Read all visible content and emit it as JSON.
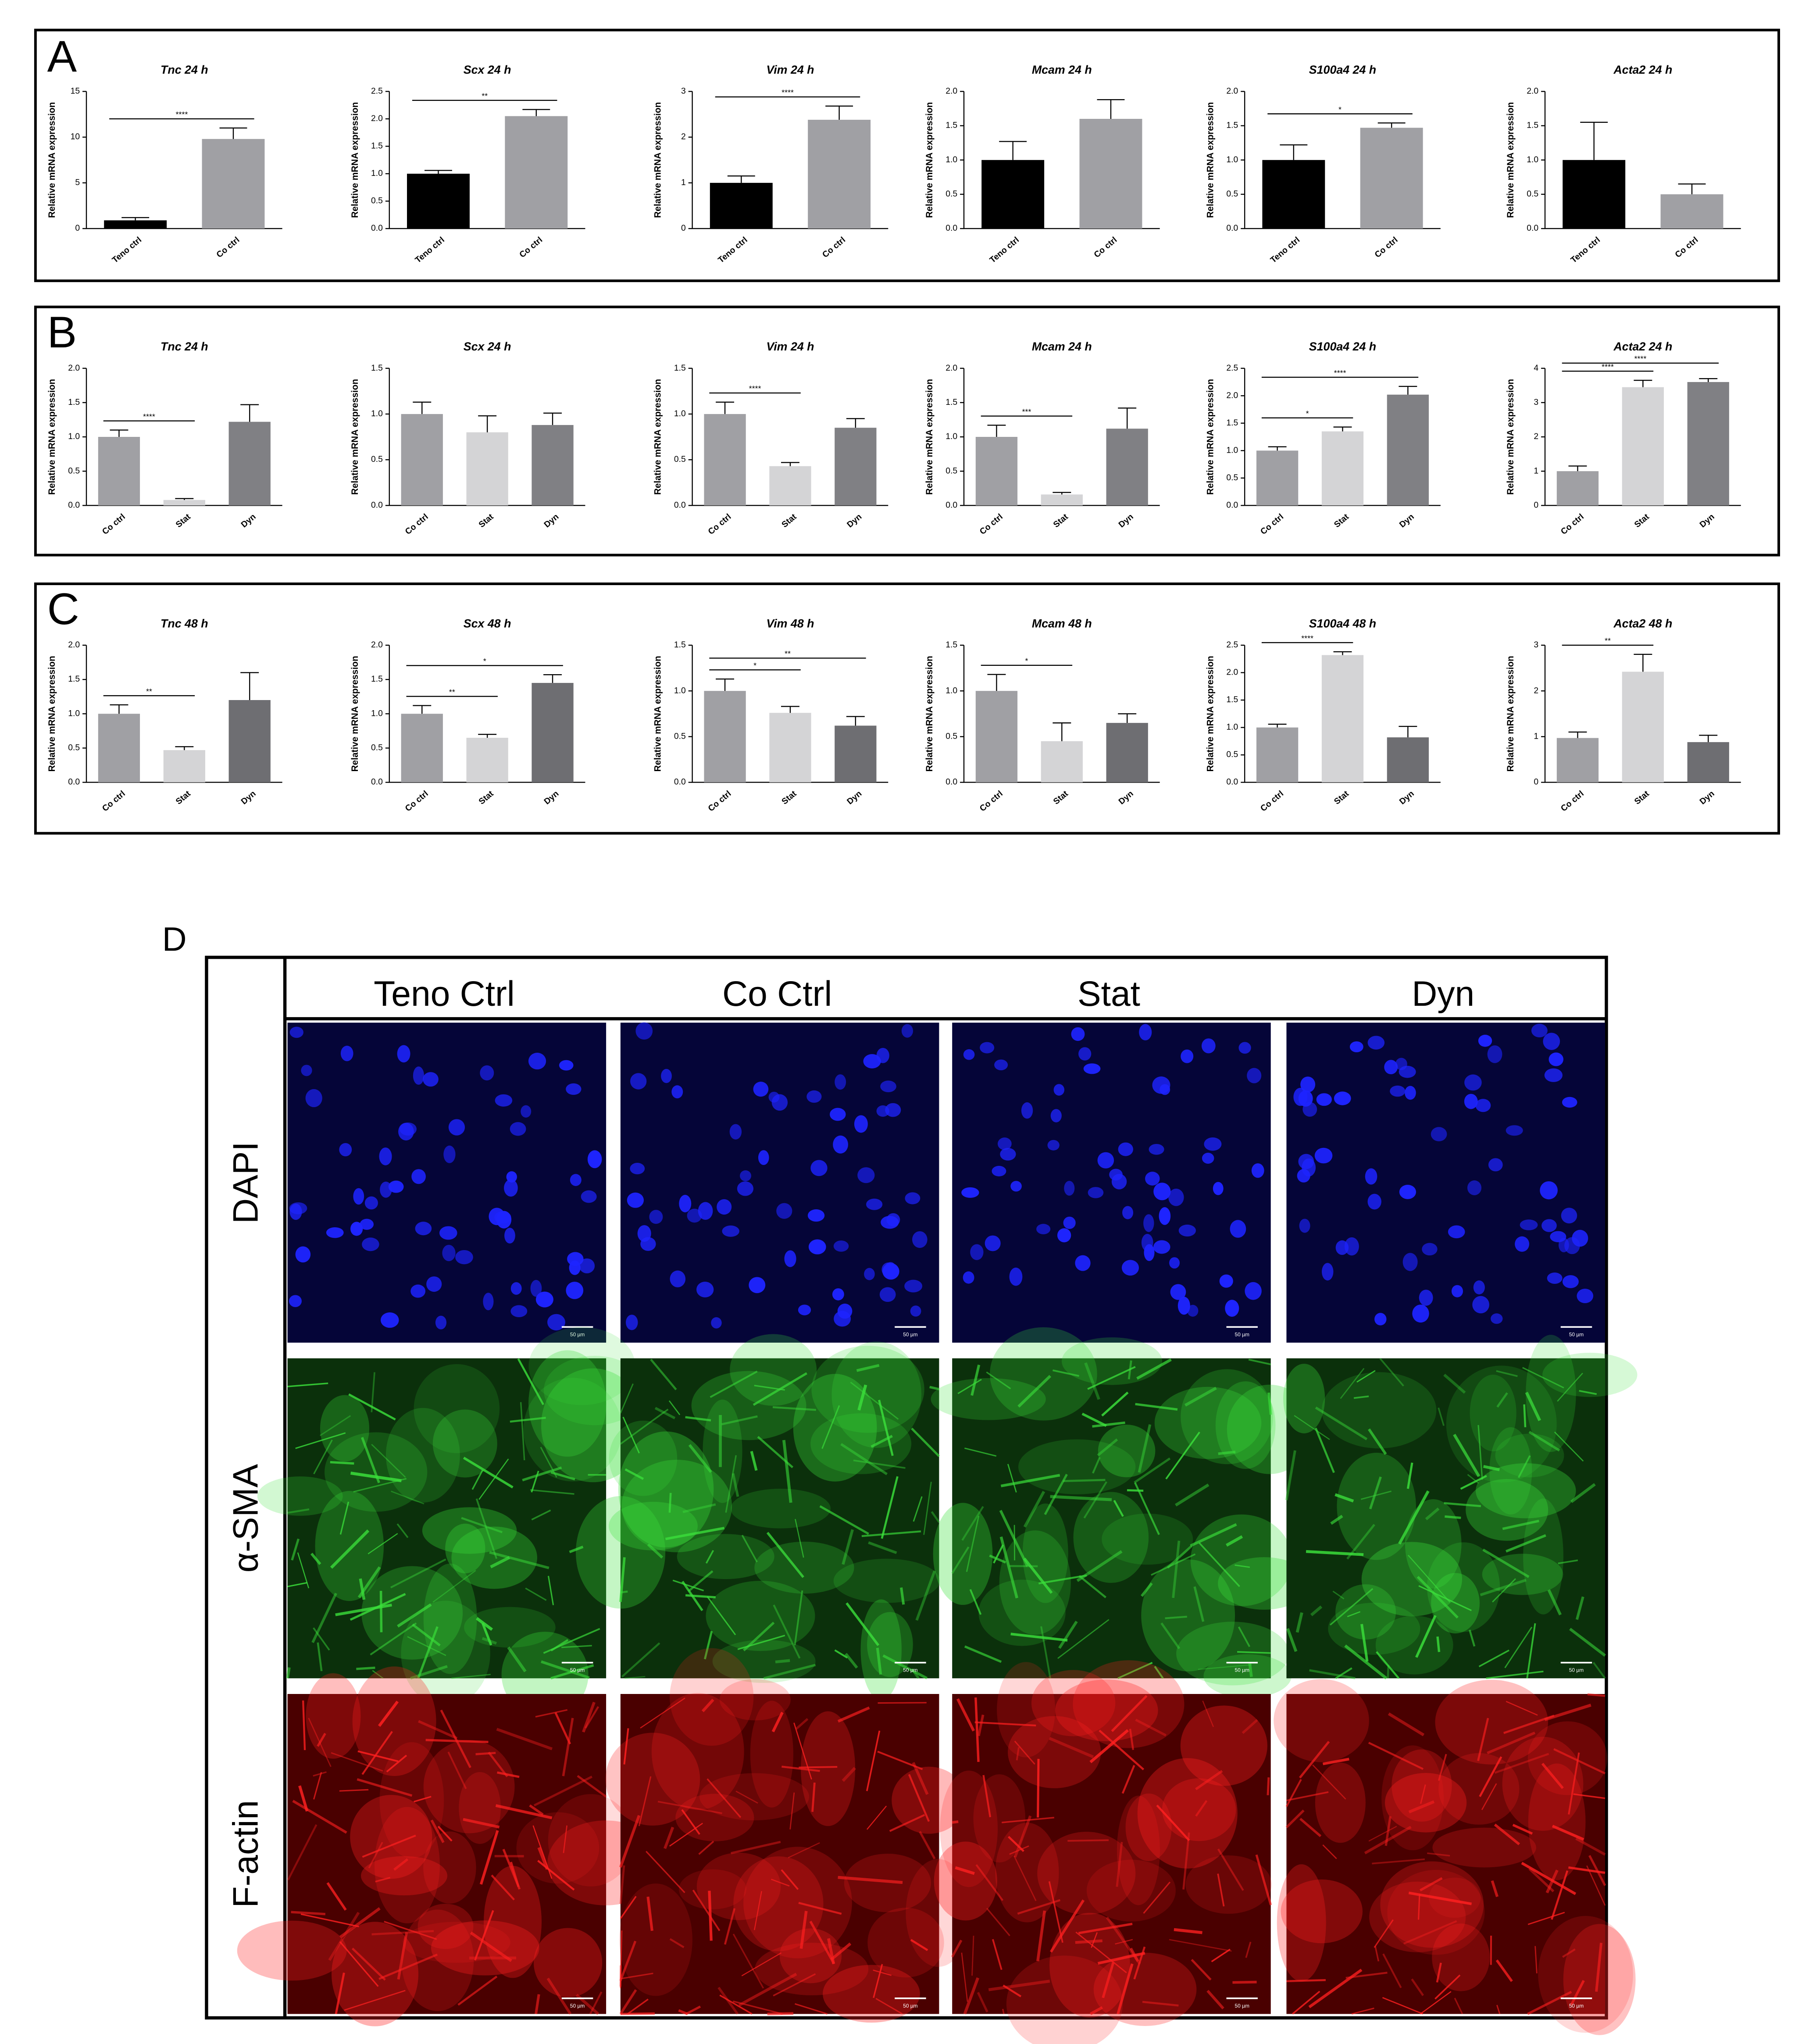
{
  "panel_labels": [
    "A",
    "B",
    "C"
  ],
  "chart_data": [
    {
      "type": "bar",
      "title": "Tnc 24 h",
      "ylabel": "Relative mRNA expression",
      "categories": [
        "Teno ctrl",
        "Co ctrl"
      ],
      "values": [
        0.9,
        9.8
      ],
      "errors": [
        0.3,
        1.2
      ],
      "colors": [
        "#000000",
        "#a0a0a4"
      ],
      "ylim": [
        0,
        15
      ],
      "yticks": [
        0,
        5,
        10,
        15
      ],
      "significance": [
        {
          "from": 0,
          "to": 1,
          "label": "****"
        }
      ]
    },
    {
      "type": "bar",
      "title": "Scx 24 h",
      "ylabel": "Relative mRNA expression",
      "categories": [
        "Teno ctrl",
        "Co ctrl"
      ],
      "values": [
        1.0,
        2.05
      ],
      "errors": [
        0.06,
        0.12
      ],
      "colors": [
        "#000000",
        "#a0a0a4"
      ],
      "ylim": [
        0,
        2.5
      ],
      "yticks": [
        {
          "value": 0,
          "label": "0.0"
        },
        0.5,
        {
          "value": 1,
          "label": "1.0"
        },
        1.5,
        {
          "value": 2,
          "label": "2.0"
        },
        2.5
      ],
      "significance": [
        {
          "from": 0,
          "to": 1,
          "label": "**"
        }
      ]
    },
    {
      "type": "bar",
      "title": "Vim 24 h",
      "ylabel": "Relative mRNA expression",
      "categories": [
        "Teno ctrl",
        "Co ctrl"
      ],
      "values": [
        1.0,
        2.38
      ],
      "errors": [
        0.15,
        0.3
      ],
      "colors": [
        "#000000",
        "#a0a0a4"
      ],
      "ylim": [
        0,
        3
      ],
      "yticks": [
        0,
        1,
        2,
        3
      ],
      "significance": [
        {
          "from": 0,
          "to": 1,
          "label": "****"
        }
      ]
    },
    {
      "type": "bar",
      "title": "Mcam 24 h",
      "ylabel": "Relative mRNA expression",
      "categories": [
        "Teno ctrl",
        "Co ctrl"
      ],
      "values": [
        1.0,
        1.6
      ],
      "errors": [
        0.27,
        0.28
      ],
      "colors": [
        "#000000",
        "#a0a0a4"
      ],
      "ylim": [
        0,
        2
      ],
      "yticks": [
        {
          "value": 0,
          "label": "0.0"
        },
        0.5,
        {
          "value": 1,
          "label": "1.0"
        },
        1.5,
        {
          "value": 2,
          "label": "2.0"
        }
      ],
      "significance": []
    },
    {
      "type": "bar",
      "title": "S100a4 24 h",
      "ylabel": "Relative mRNA expression",
      "categories": [
        "Teno ctrl",
        "Co ctrl"
      ],
      "values": [
        1.0,
        1.47
      ],
      "errors": [
        0.22,
        0.07
      ],
      "colors": [
        "#000000",
        "#a0a0a4"
      ],
      "ylim": [
        0,
        2
      ],
      "yticks": [
        {
          "value": 0,
          "label": "0.0"
        },
        0.5,
        {
          "value": 1,
          "label": "1.0"
        },
        1.5,
        {
          "value": 2,
          "label": "2.0"
        }
      ],
      "significance": [
        {
          "from": 0,
          "to": 1,
          "label": "*"
        }
      ]
    },
    {
      "type": "bar",
      "title": "Acta2 24 h",
      "ylabel": "Relative mRNA expression",
      "categories": [
        "Teno ctrl",
        "Co ctrl"
      ],
      "values": [
        1.0,
        0.5
      ],
      "errors": [
        0.55,
        0.15
      ],
      "colors": [
        "#000000",
        "#a0a0a4"
      ],
      "ylim": [
        0,
        2
      ],
      "yticks": [
        {
          "value": 0,
          "label": "0.0"
        },
        0.5,
        {
          "value": 1,
          "label": "1.0"
        },
        1.5,
        {
          "value": 2,
          "label": "2.0"
        }
      ],
      "significance": []
    },
    {
      "type": "bar",
      "title": "Tnc 24 h",
      "ylabel": "Relative mRNA expression",
      "categories": [
        "Co ctrl",
        "Stat",
        "Dyn"
      ],
      "values": [
        1.0,
        0.08,
        1.22
      ],
      "errors": [
        0.1,
        0.02,
        0.25
      ],
      "colors": [
        "#a0a0a4",
        "#d4d4d6",
        "#808084"
      ],
      "ylim": [
        0,
        2
      ],
      "yticks": [
        {
          "value": 0,
          "label": "0.0"
        },
        0.5,
        {
          "value": 1,
          "label": "1.0"
        },
        1.5,
        {
          "value": 2,
          "label": "2.0"
        }
      ],
      "significance": [
        {
          "from": 0,
          "to": 1,
          "label": "****"
        }
      ]
    },
    {
      "type": "bar",
      "title": "Scx 24 h",
      "ylabel": "Relative mRNA expression",
      "categories": [
        "Co ctrl",
        "Stat",
        "Dyn"
      ],
      "values": [
        1.0,
        0.8,
        0.88
      ],
      "errors": [
        0.13,
        0.18,
        0.13
      ],
      "colors": [
        "#a0a0a4",
        "#d4d4d6",
        "#808084"
      ],
      "ylim": [
        0,
        1.5
      ],
      "yticks": [
        {
          "value": 0,
          "label": "0.0"
        },
        0.5,
        {
          "value": 1,
          "label": "1.0"
        },
        1.5
      ],
      "significance": []
    },
    {
      "type": "bar",
      "title": "Vim 24 h",
      "ylabel": "Relative mRNA expression",
      "categories": [
        "Co ctrl",
        "Stat",
        "Dyn"
      ],
      "values": [
        1.0,
        0.43,
        0.85
      ],
      "errors": [
        0.13,
        0.04,
        0.1
      ],
      "colors": [
        "#a0a0a4",
        "#d4d4d6",
        "#808084"
      ],
      "ylim": [
        0,
        1.5
      ],
      "yticks": [
        {
          "value": 0,
          "label": "0.0"
        },
        0.5,
        {
          "value": 1,
          "label": "1.0"
        },
        1.5
      ],
      "significance": [
        {
          "from": 0,
          "to": 1,
          "label": "****"
        }
      ]
    },
    {
      "type": "bar",
      "title": "Mcam 24 h",
      "ylabel": "Relative mRNA expression",
      "categories": [
        "Co ctrl",
        "Stat",
        "Dyn"
      ],
      "values": [
        1.0,
        0.16,
        1.12
      ],
      "errors": [
        0.17,
        0.03,
        0.3
      ],
      "colors": [
        "#a0a0a4",
        "#d4d4d6",
        "#808084"
      ],
      "ylim": [
        0,
        2
      ],
      "yticks": [
        {
          "value": 0,
          "label": "0.0"
        },
        0.5,
        {
          "value": 1,
          "label": "1.0"
        },
        1.5,
        {
          "value": 2,
          "label": "2.0"
        }
      ],
      "significance": [
        {
          "from": 0,
          "to": 1,
          "label": "***"
        }
      ]
    },
    {
      "type": "bar",
      "title": "S100a4 24 h",
      "ylabel": "Relative mRNA expression",
      "categories": [
        "Co ctrl",
        "Stat",
        "Dyn"
      ],
      "values": [
        1.0,
        1.35,
        2.02
      ],
      "errors": [
        0.07,
        0.08,
        0.15
      ],
      "colors": [
        "#a0a0a4",
        "#d4d4d6",
        "#808084"
      ],
      "ylim": [
        0,
        2.5
      ],
      "yticks": [
        {
          "value": 0,
          "label": "0.0"
        },
        0.5,
        {
          "value": 1,
          "label": "1.0"
        },
        1.5,
        {
          "value": 2,
          "label": "2.0"
        },
        2.5
      ],
      "significance": [
        {
          "from": 0,
          "to": 1,
          "label": "*"
        },
        {
          "from": 0,
          "to": 2,
          "label": "****"
        }
      ]
    },
    {
      "type": "bar",
      "title": "Acta2 24 h",
      "ylabel": "Relative mRNA expression",
      "categories": [
        "Co ctrl",
        "Stat",
        "Dyn"
      ],
      "values": [
        1.0,
        3.45,
        3.6
      ],
      "errors": [
        0.15,
        0.2,
        0.1
      ],
      "colors": [
        "#a0a0a4",
        "#d4d4d6",
        "#808084"
      ],
      "ylim": [
        0,
        4
      ],
      "yticks": [
        0,
        1,
        2,
        3,
        4
      ],
      "significance": [
        {
          "from": 0,
          "to": 1,
          "label": "****"
        },
        {
          "from": 0,
          "to": 2,
          "label": "****"
        }
      ]
    },
    {
      "type": "bar",
      "title": "Tnc 48 h",
      "ylabel": "Relative mRNA expression",
      "categories": [
        "Co ctrl",
        "Stat",
        "Dyn"
      ],
      "values": [
        1.0,
        0.47,
        1.2
      ],
      "errors": [
        0.13,
        0.05,
        0.4
      ],
      "colors": [
        "#a0a0a4",
        "#d4d4d6",
        "#6e6e72"
      ],
      "ylim": [
        0,
        2
      ],
      "yticks": [
        {
          "value": 0,
          "label": "0.0"
        },
        0.5,
        {
          "value": 1,
          "label": "1.0"
        },
        1.5,
        {
          "value": 2,
          "label": "2.0"
        }
      ],
      "significance": [
        {
          "from": 0,
          "to": 1,
          "label": "**"
        }
      ]
    },
    {
      "type": "bar",
      "title": "Scx 48 h",
      "ylabel": "Relative mRNA expression",
      "categories": [
        "Co ctrl",
        "Stat",
        "Dyn"
      ],
      "values": [
        1.0,
        0.65,
        1.45
      ],
      "errors": [
        0.12,
        0.05,
        0.12
      ],
      "colors": [
        "#a0a0a4",
        "#d4d4d6",
        "#6e6e72"
      ],
      "ylim": [
        0,
        2
      ],
      "yticks": [
        {
          "value": 0,
          "label": "0.0"
        },
        0.5,
        {
          "value": 1,
          "label": "1.0"
        },
        1.5,
        {
          "value": 2,
          "label": "2.0"
        }
      ],
      "significance": [
        {
          "from": 0,
          "to": 1,
          "label": "**"
        },
        {
          "from": 0,
          "to": 2,
          "label": "*"
        }
      ]
    },
    {
      "type": "bar",
      "title": "Vim 48 h",
      "ylabel": "Relative mRNA expression",
      "categories": [
        "Co ctrl",
        "Stat",
        "Dyn"
      ],
      "values": [
        1.0,
        0.76,
        0.62
      ],
      "errors": [
        0.13,
        0.07,
        0.1
      ],
      "colors": [
        "#a0a0a4",
        "#d4d4d6",
        "#6e6e72"
      ],
      "ylim": [
        0,
        1.5
      ],
      "yticks": [
        {
          "value": 0,
          "label": "0.0"
        },
        0.5,
        {
          "value": 1,
          "label": "1.0"
        },
        1.5
      ],
      "significance": [
        {
          "from": 0,
          "to": 1,
          "label": "*"
        },
        {
          "from": 0,
          "to": 2,
          "label": "**"
        }
      ]
    },
    {
      "type": "bar",
      "title": "Mcam 48 h",
      "ylabel": "Relative mRNA expression",
      "categories": [
        "Co ctrl",
        "Stat",
        "Dyn"
      ],
      "values": [
        1.0,
        0.45,
        0.65
      ],
      "errors": [
        0.18,
        0.2,
        0.1
      ],
      "colors": [
        "#a0a0a4",
        "#d4d4d6",
        "#6e6e72"
      ],
      "ylim": [
        0,
        1.5
      ],
      "yticks": [
        {
          "value": 0,
          "label": "0.0"
        },
        0.5,
        {
          "value": 1,
          "label": "1.0"
        },
        1.5
      ],
      "significance": [
        {
          "from": 0,
          "to": 1,
          "label": "*"
        }
      ]
    },
    {
      "type": "bar",
      "title": "S100a4 48 h",
      "ylabel": "Relative mRNA expression",
      "categories": [
        "Co ctrl",
        "Stat",
        "Dyn"
      ],
      "values": [
        1.0,
        2.32,
        0.82
      ],
      "errors": [
        0.06,
        0.06,
        0.2
      ],
      "colors": [
        "#a0a0a4",
        "#d4d4d6",
        "#6e6e72"
      ],
      "ylim": [
        0,
        2.5
      ],
      "yticks": [
        {
          "value": 0,
          "label": "0.0"
        },
        0.5,
        {
          "value": 1,
          "label": "1.0"
        },
        1.5,
        {
          "value": 2,
          "label": "2.0"
        },
        2.5
      ],
      "significance": [
        {
          "from": 0,
          "to": 1,
          "label": "****"
        }
      ]
    },
    {
      "type": "bar",
      "title": "Acta2 48 h",
      "ylabel": "Relative mRNA expression",
      "categories": [
        "Co ctrl",
        "Stat",
        "Dyn"
      ],
      "values": [
        0.97,
        2.42,
        0.88
      ],
      "errors": [
        0.13,
        0.38,
        0.15
      ],
      "colors": [
        "#a0a0a4",
        "#d4d4d6",
        "#6e6e72"
      ],
      "ylim": [
        0,
        3
      ],
      "yticks": [
        0,
        1,
        2,
        3
      ],
      "significance": [
        {
          "from": 0,
          "to": 1,
          "label": "**"
        }
      ]
    }
  ],
  "micrographs": {
    "label": "D",
    "columns": [
      "Teno Ctrl",
      "Co Ctrl",
      "Stat",
      "Dyn"
    ],
    "rows": [
      "DAPI",
      "α-SMA",
      "F-actin"
    ],
    "scale_bar": "50 µm"
  }
}
